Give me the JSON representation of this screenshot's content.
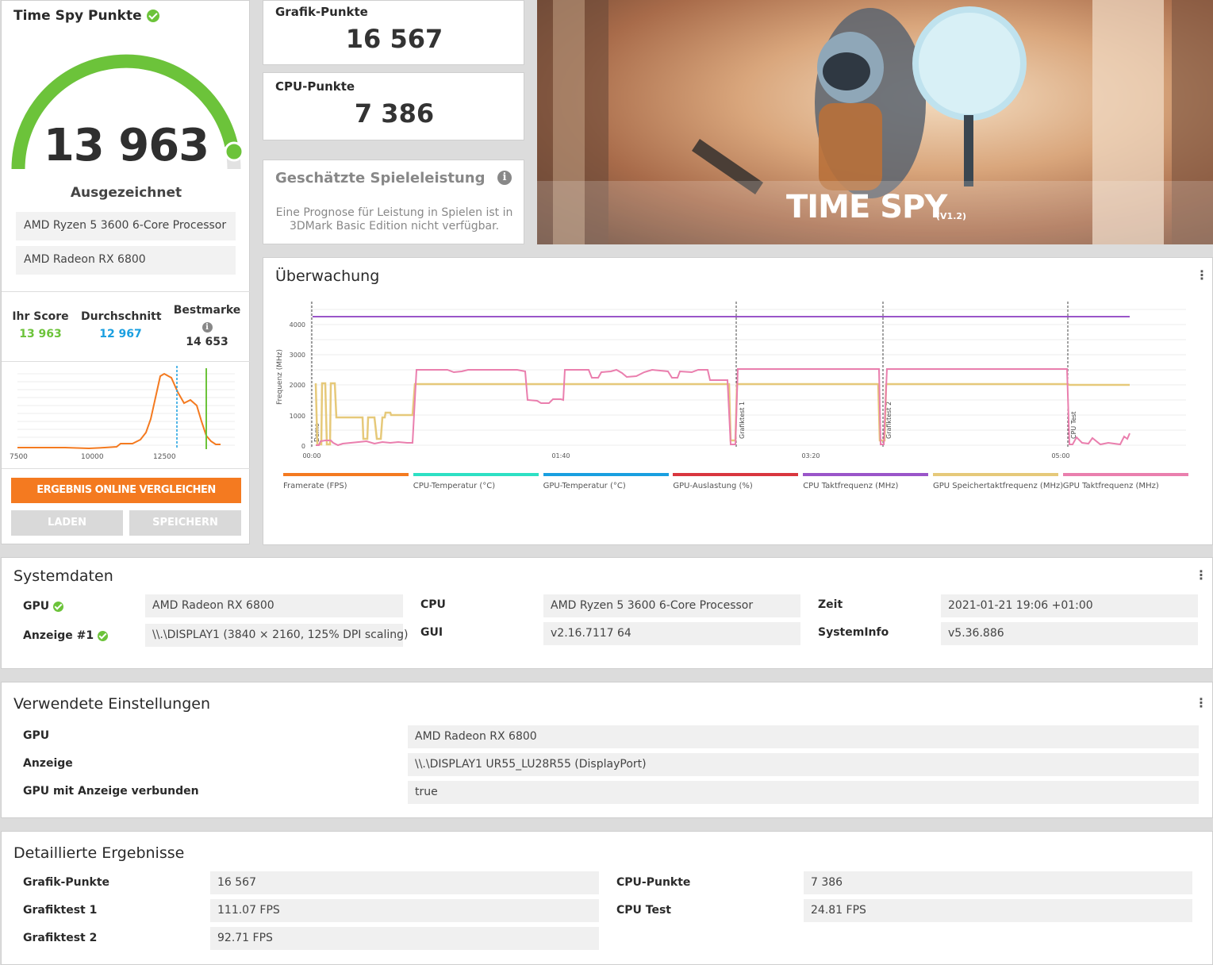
{
  "score_panel": {
    "title": "Time Spy Punkte",
    "score": "13 963",
    "rating": "Ausgezeichnet",
    "gauge_fraction": 0.93,
    "cpu": "AMD Ryzen 5 3600 6-Core Processor",
    "gpu": "AMD Radeon RX 6800",
    "your_score_label": "Ihr Score",
    "your_score": "13 963",
    "average_label": "Durchschnitt",
    "average": "12 967",
    "best_label": "Bestmarke",
    "best": "14 653",
    "distribution_ticks": [
      "7500",
      "10000",
      "12500"
    ],
    "compare_button": "ERGEBNIS ONLINE VERGLEICHEN",
    "load_button": "LADEN",
    "save_button": "SPEICHERN",
    "colors": {
      "green": "#6cc33a",
      "blue": "#1a9fe0",
      "orange": "#f47a20"
    }
  },
  "cards": {
    "graphics_label": "Grafik-Punkte",
    "graphics_value": "16 567",
    "cpu_label": "CPU-Punkte",
    "cpu_value": "7 386",
    "estimate_title": "Geschätzte Spieleleistung",
    "estimate_text": "Eine Prognose für Leistung in Spielen ist in 3DMark Basic Edition nicht verfügbar."
  },
  "hero": {
    "title": "TIME SPY",
    "version": "(V1.2)"
  },
  "monitoring": {
    "title": "Überwachung",
    "y_axis_label": "Frequenz (MHz)",
    "y_ticks": [
      "0",
      "1000",
      "2000",
      "3000",
      "4000"
    ],
    "x_ticks": [
      "00:00",
      "01:40",
      "03:20",
      "05:00"
    ],
    "markers": [
      "Demo",
      "Grafiktest 1",
      "Grafiktest 2",
      "CPU Test"
    ],
    "legend": [
      {
        "label": "Framerate (FPS)",
        "color": "#f47a20"
      },
      {
        "label": "CPU-Temperatur (°C)",
        "color": "#2de0c4"
      },
      {
        "label": "GPU-Temperatur (°C)",
        "color": "#1a9fe0"
      },
      {
        "label": "GPU-Auslastung (%)",
        "color": "#d9363e"
      },
      {
        "label": "CPU Taktfrequenz (MHz)",
        "color": "#9a55c9"
      },
      {
        "label": "GPU Speichertaktfrequenz (MHz)",
        "color": "#e6c97a"
      },
      {
        "label": "GPU Taktfrequenz (MHz)",
        "color": "#ea7fae"
      }
    ]
  },
  "system": {
    "title": "Systemdaten",
    "gpu_label": "GPU",
    "gpu_value": "AMD Radeon RX 6800",
    "display_label": "Anzeige #1",
    "display_value": "\\\\.\\DISPLAY1 (3840 × 2160, 125% DPI scaling)",
    "cpu_label": "CPU",
    "cpu_value": "AMD Ryzen 5 3600 6-Core Processor",
    "gui_label": "GUI",
    "gui_value": "v2.16.7117 64",
    "time_label": "Zeit",
    "time_value": "2021-01-21 19:06 +01:00",
    "sysinfo_label": "SystemInfo",
    "sysinfo_value": "v5.36.886"
  },
  "settings": {
    "title": "Verwendete Einstellungen",
    "gpu_label": "GPU",
    "gpu_value": "AMD Radeon RX 6800",
    "display_label": "Anzeige",
    "display_value": "\\\\.\\DISPLAY1 UR55_LU28R55 (DisplayPort)",
    "connected_label": "GPU mit Anzeige verbunden",
    "connected_value": "true"
  },
  "details": {
    "title": "Detaillierte Ergebnisse",
    "graphics_label": "Grafik-Punkte",
    "graphics_value": "16 567",
    "gt1_label": "Grafiktest 1",
    "gt1_value": "111.07 FPS",
    "gt2_label": "Grafiktest 2",
    "gt2_value": "92.71 FPS",
    "cpu_label": "CPU-Punkte",
    "cpu_value": "7 386",
    "cputest_label": "CPU Test",
    "cputest_value": "24.81 FPS"
  }
}
